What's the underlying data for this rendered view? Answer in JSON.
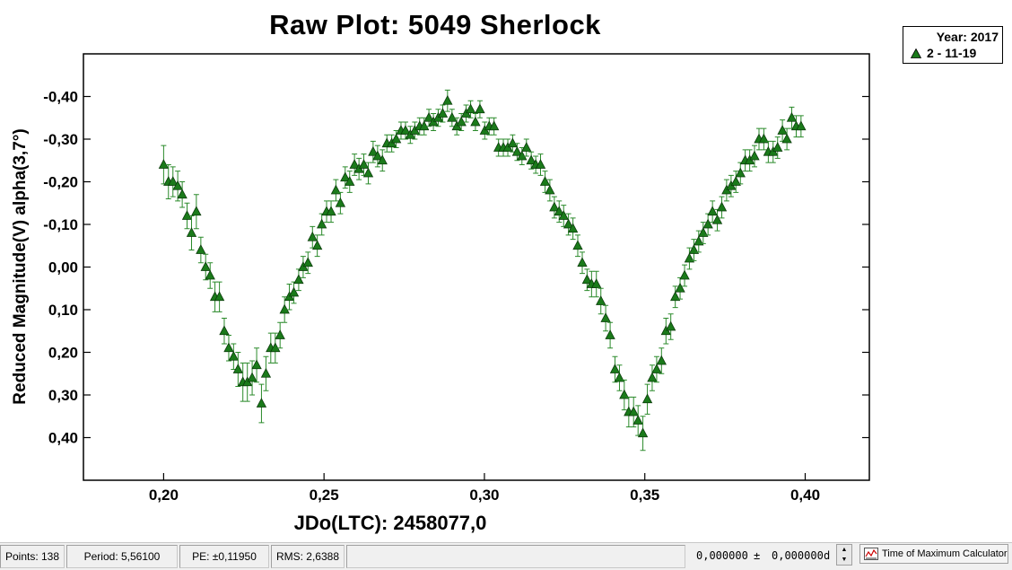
{
  "chart_data": {
    "type": "scatter",
    "title": "Raw Plot: 5049 Sherlock",
    "xlabel": "JDo(LTC): 2458077,0",
    "ylabel": "Reduced Magnitude(V) alpha(3,7°)",
    "xlim": [
      0.175,
      0.42
    ],
    "ylim": [
      0.5,
      -0.5
    ],
    "y_inverted": true,
    "x_ticks": [
      0.2,
      0.25,
      0.3,
      0.35,
      0.4
    ],
    "x_tick_labels": [
      "0,20",
      "0,25",
      "0,30",
      "0,35",
      "0,40"
    ],
    "y_ticks": [
      -0.4,
      -0.3,
      -0.2,
      -0.1,
      0.0,
      0.1,
      0.2,
      0.3,
      0.4
    ],
    "y_tick_labels": [
      "-0,40",
      "-0,30",
      "-0,20",
      "-0,10",
      "0,00",
      "0,10",
      "0,20",
      "0,30",
      "0,40"
    ],
    "grid": false,
    "legend_position": "top-right",
    "marker_color": "#1a7a1a",
    "errorbar_color": "#2a8a2a",
    "series": [
      {
        "name": "2 - 11-19",
        "x": [
          0.2,
          0.2015,
          0.2029,
          0.2044,
          0.2058,
          0.2073,
          0.2087,
          0.2102,
          0.2116,
          0.2131,
          0.2145,
          0.216,
          0.2174,
          0.2189,
          0.2203,
          0.2218,
          0.2232,
          0.2247,
          0.2261,
          0.2276,
          0.229,
          0.2305,
          0.2319,
          0.2334,
          0.2348,
          0.2363,
          0.2377,
          0.2392,
          0.2406,
          0.2421,
          0.2435,
          0.245,
          0.2464,
          0.2479,
          0.2493,
          0.2508,
          0.2522,
          0.2537,
          0.2551,
          0.2566,
          0.258,
          0.2595,
          0.2609,
          0.2624,
          0.2638,
          0.2653,
          0.2667,
          0.2682,
          0.2696,
          0.2711,
          0.2725,
          0.274,
          0.2754,
          0.2769,
          0.2783,
          0.2798,
          0.2812,
          0.2827,
          0.2841,
          0.2856,
          0.287,
          0.2885,
          0.2899,
          0.2914,
          0.2928,
          0.2943,
          0.2957,
          0.2972,
          0.2986,
          0.3001,
          0.3015,
          0.303,
          0.3044,
          0.3059,
          0.3073,
          0.3088,
          0.3102,
          0.3117,
          0.3131,
          0.3146,
          0.316,
          0.3175,
          0.3189,
          0.3204,
          0.3218,
          0.3233,
          0.3247,
          0.3262,
          0.3276,
          0.3291,
          0.3305,
          0.332,
          0.3334,
          0.3349,
          0.3363,
          0.3378,
          0.3392,
          0.3407,
          0.3421,
          0.3436,
          0.345,
          0.3465,
          0.3479,
          0.3494,
          0.3508,
          0.3523,
          0.3537,
          0.3552,
          0.3566,
          0.3581,
          0.3595,
          0.361,
          0.3624,
          0.3639,
          0.3653,
          0.3668,
          0.3682,
          0.3697,
          0.3711,
          0.3726,
          0.374,
          0.3755,
          0.3769,
          0.3784,
          0.3798,
          0.3813,
          0.3827,
          0.3842,
          0.3856,
          0.3871,
          0.3885,
          0.39,
          0.3914,
          0.3929,
          0.3943,
          0.3958,
          0.3972,
          0.3987
        ],
        "y": [
          -0.24,
          -0.2,
          -0.2,
          -0.19,
          -0.17,
          -0.12,
          -0.08,
          -0.13,
          -0.04,
          0.0,
          0.02,
          0.07,
          0.07,
          0.15,
          0.19,
          0.21,
          0.24,
          0.27,
          0.27,
          0.26,
          0.23,
          0.32,
          0.25,
          0.19,
          0.19,
          0.16,
          0.1,
          0.07,
          0.06,
          0.03,
          0.0,
          -0.01,
          -0.07,
          -0.05,
          -0.1,
          -0.13,
          -0.13,
          -0.18,
          -0.15,
          -0.21,
          -0.2,
          -0.24,
          -0.23,
          -0.24,
          -0.22,
          -0.27,
          -0.26,
          -0.25,
          -0.29,
          -0.29,
          -0.3,
          -0.32,
          -0.32,
          -0.31,
          -0.32,
          -0.33,
          -0.33,
          -0.35,
          -0.34,
          -0.35,
          -0.36,
          -0.39,
          -0.35,
          -0.33,
          -0.34,
          -0.36,
          -0.37,
          -0.34,
          -0.37,
          -0.32,
          -0.33,
          -0.33,
          -0.28,
          -0.28,
          -0.28,
          -0.29,
          -0.27,
          -0.26,
          -0.28,
          -0.25,
          -0.24,
          -0.24,
          -0.2,
          -0.18,
          -0.14,
          -0.13,
          -0.12,
          -0.1,
          -0.09,
          -0.05,
          -0.01,
          0.03,
          0.04,
          0.04,
          0.08,
          0.12,
          0.16,
          0.24,
          0.26,
          0.3,
          0.34,
          0.34,
          0.36,
          0.39,
          0.31,
          0.26,
          0.24,
          0.22,
          0.15,
          0.14,
          0.07,
          0.05,
          0.02,
          -0.02,
          -0.04,
          -0.06,
          -0.08,
          -0.1,
          -0.13,
          -0.11,
          -0.14,
          -0.18,
          -0.19,
          -0.2,
          -0.22,
          -0.25,
          -0.25,
          -0.26,
          -0.3,
          -0.3,
          -0.27,
          -0.27,
          -0.28,
          -0.32,
          -0.3,
          -0.35,
          -0.33,
          -0.33
        ],
        "err": [
          0.045,
          0.04,
          0.035,
          0.035,
          0.03,
          0.03,
          0.04,
          0.04,
          0.03,
          0.03,
          0.03,
          0.035,
          0.035,
          0.03,
          0.03,
          0.03,
          0.04,
          0.045,
          0.045,
          0.04,
          0.04,
          0.045,
          0.04,
          0.035,
          0.035,
          0.03,
          0.03,
          0.03,
          0.025,
          0.025,
          0.025,
          0.025,
          0.025,
          0.025,
          0.025,
          0.025,
          0.025,
          0.025,
          0.025,
          0.025,
          0.025,
          0.025,
          0.025,
          0.025,
          0.025,
          0.025,
          0.025,
          0.025,
          0.02,
          0.02,
          0.02,
          0.02,
          0.02,
          0.02,
          0.02,
          0.02,
          0.02,
          0.02,
          0.02,
          0.02,
          0.02,
          0.025,
          0.02,
          0.02,
          0.02,
          0.02,
          0.02,
          0.02,
          0.02,
          0.02,
          0.02,
          0.02,
          0.02,
          0.02,
          0.02,
          0.02,
          0.02,
          0.02,
          0.02,
          0.02,
          0.02,
          0.025,
          0.025,
          0.025,
          0.025,
          0.025,
          0.025,
          0.025,
          0.025,
          0.025,
          0.025,
          0.025,
          0.03,
          0.03,
          0.03,
          0.03,
          0.03,
          0.03,
          0.03,
          0.035,
          0.035,
          0.035,
          0.035,
          0.04,
          0.035,
          0.03,
          0.03,
          0.03,
          0.03,
          0.03,
          0.025,
          0.025,
          0.025,
          0.025,
          0.025,
          0.025,
          0.025,
          0.025,
          0.025,
          0.025,
          0.025,
          0.025,
          0.025,
          0.025,
          0.025,
          0.025,
          0.025,
          0.025,
          0.025,
          0.025,
          0.025,
          0.025,
          0.025,
          0.025,
          0.025,
          0.025,
          0.025,
          0.025
        ]
      }
    ]
  },
  "legend": {
    "year_label": "Year: 2017",
    "series_label": "2 - 11-19"
  },
  "statusbar": {
    "points": "Points: 138",
    "period": "Period: 5,56100",
    "pe": "PE: ±0,11950",
    "rms": "RMS: 2,6388",
    "time_value": "0,000000",
    "plusminus": "±",
    "time_err": "0,000000",
    "time_unit": "d",
    "tmc_label": "Time of Maximum Calculator"
  }
}
